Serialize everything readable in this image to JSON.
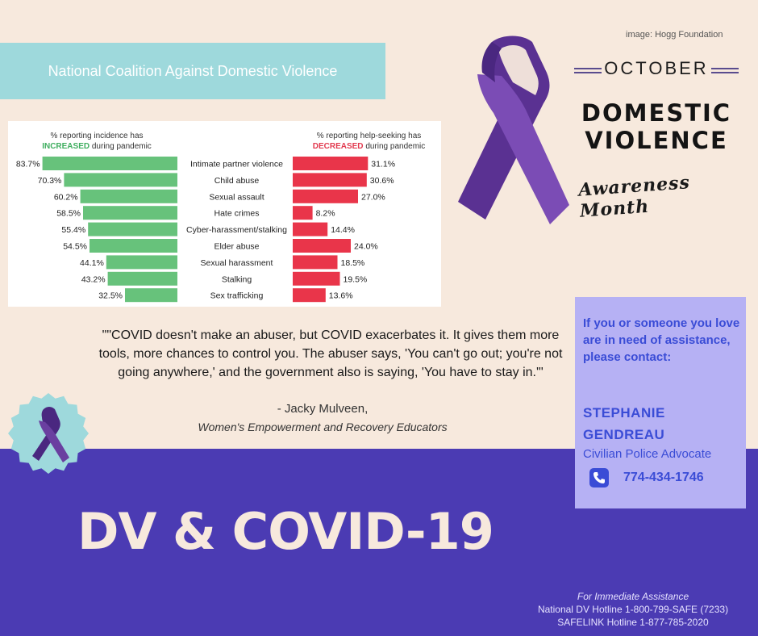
{
  "image_credit": "image: Hogg Foundation",
  "coalition_label": "National Coalition Against Domestic Violence",
  "header": {
    "month": "OCTOBER",
    "title_line1": "DOMESTIC",
    "title_line2": "VIOLENCE",
    "subtitle": "Awareness Month"
  },
  "chart_data": {
    "type": "bar",
    "left_header": {
      "line1": "% reporting incidence has",
      "highlight": "INCREASED",
      "rest": "during pandemic"
    },
    "right_header": {
      "line1": "% reporting help-seeking has",
      "highlight": "DECREASED",
      "rest": "during pandemic"
    },
    "categories": [
      "Intimate partner violence",
      "Child abuse",
      "Sexual assault",
      "Hate crimes",
      "Cyber-harassment/stalking",
      "Elder abuse",
      "Sexual harassment",
      "Stalking",
      "Sex trafficking"
    ],
    "series": [
      {
        "name": "Incidence increased",
        "color": "#67c27b",
        "values": [
          83.7,
          70.3,
          60.2,
          58.5,
          55.4,
          54.5,
          44.1,
          43.2,
          32.5
        ],
        "labels": [
          "83.7%",
          "70.3%",
          "60.2%",
          "58.5%",
          "55.4%",
          "54.5%",
          "44.1%",
          "43.2%",
          "32.5%"
        ]
      },
      {
        "name": "Help-seeking decreased",
        "color": "#e9354a",
        "values": [
          31.1,
          30.6,
          27.0,
          8.2,
          14.4,
          24.0,
          18.5,
          19.5,
          13.6
        ],
        "labels": [
          "31.1%",
          "30.6%",
          "27.0%",
          "8.2%",
          "14.4%",
          "24.0%",
          "18.5%",
          "19.5%",
          "13.6%"
        ]
      }
    ]
  },
  "quote": {
    "text": "\"\"COVID doesn't make an abuser, but COVID exacerbates it. It gives them more tools, more chances to control you. The abuser says, 'You can't go out; you're not going anywhere,' and the government also is saying, 'You have to stay in.'\"",
    "author": "- Jacky Mulveen,",
    "organization": "Women's Empowerment and Recovery Educators"
  },
  "contact": {
    "intro": "If you or someone you love are in need of assistance, please contact:",
    "name": "STEPHANIE GENDREAU",
    "role": "Civilian Police Advocate",
    "phone": "774-434-1746"
  },
  "main_title": "DV & COVID-19",
  "footer": {
    "lead": "For Immediate Assistance",
    "hotline1": "National DV Hotline 1-800-799-SAFE (7233)",
    "hotline2": "SAFELINK Hotline 1-877-785-2020"
  },
  "colors": {
    "background": "#f7e9dd",
    "purple": "#4b3bb3",
    "teal": "#9ed9dc",
    "card": "#b6b1f4",
    "accent_blue": "#3a4cd6",
    "ribbon": "#6a3fa0"
  },
  "icons": [
    "ribbon-icon",
    "ribbon-badge-icon",
    "phone-icon"
  ]
}
